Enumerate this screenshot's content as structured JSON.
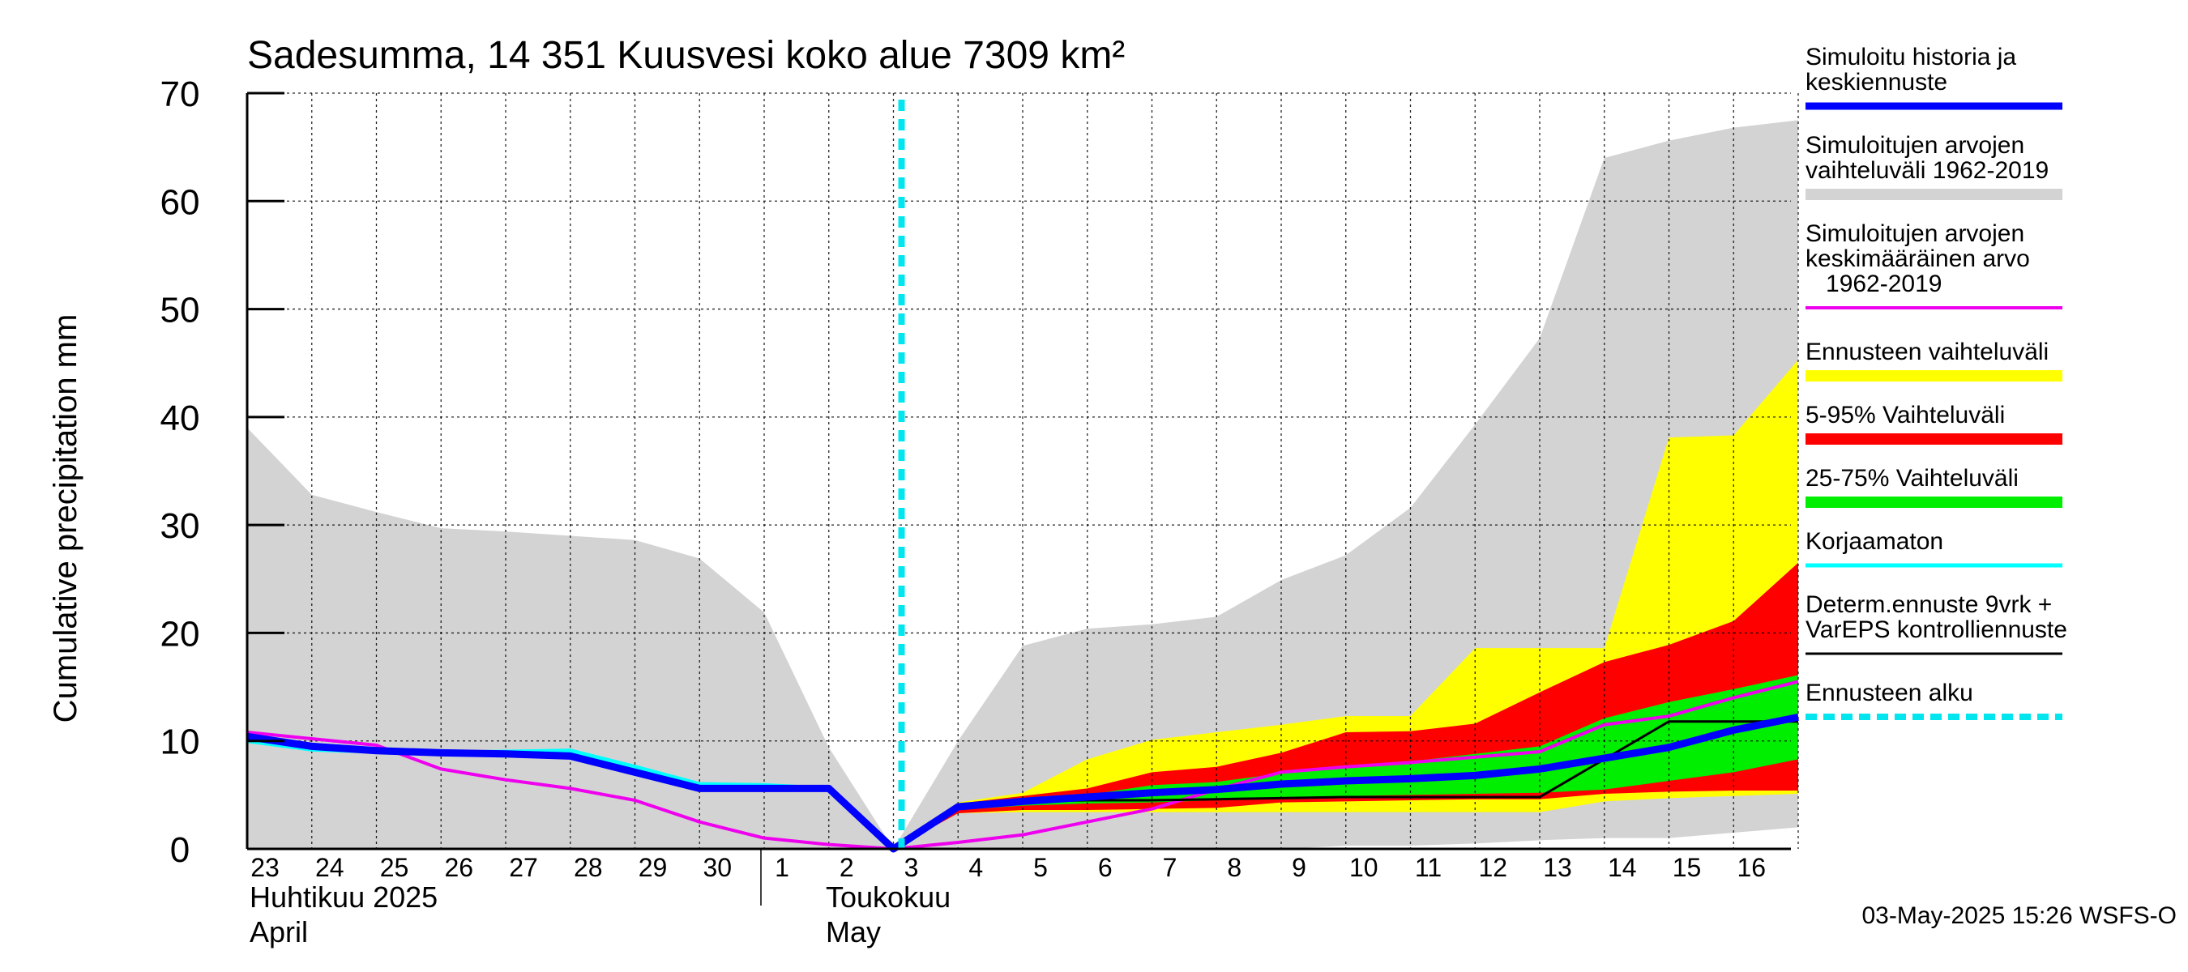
{
  "chart_data": {
    "type": "area",
    "title": "Sadesumma, 14 351 Kuusvesi koko alue 7309 km²",
    "ylabel": "Cumulative precipitation   mm",
    "ylim": [
      0,
      70
    ],
    "yticks": [
      0,
      10,
      20,
      30,
      40,
      50,
      60,
      70
    ],
    "grid": true,
    "x_day_labels": [
      "23",
      "24",
      "25",
      "26",
      "27",
      "28",
      "29",
      "30",
      "1",
      "2",
      "3",
      "4",
      "5",
      "6",
      "7",
      "8",
      "9",
      "10",
      "11",
      "12",
      "13",
      "14",
      "15",
      "16"
    ],
    "month_labels": [
      {
        "fi": "Huhtikuu  2025",
        "en": "April"
      },
      {
        "fi": "Toukokuu",
        "en": "May"
      }
    ],
    "forecast_start_day": 10,
    "series": {
      "range_1962_2019": {
        "x": [
          0,
          1,
          2,
          3,
          4,
          5,
          6,
          7,
          8,
          9,
          10,
          11,
          12,
          13,
          14,
          15,
          16,
          17,
          18,
          19,
          20,
          21,
          22,
          23,
          24
        ],
        "upper": [
          39,
          32.8,
          31.2,
          29.7,
          29.4,
          29.0,
          28.6,
          26.9,
          21.9,
          9.4,
          0,
          10,
          18.8,
          20.4,
          20.8,
          21.5,
          24.9,
          27.2,
          31.6,
          39.3,
          47.3,
          64,
          65.6,
          66.8,
          67.5
        ],
        "lower": [
          0,
          0,
          0,
          0,
          0,
          0,
          0,
          0,
          0,
          0,
          0,
          0,
          0,
          0,
          0,
          0,
          0,
          0.3,
          0.3,
          0.5,
          0.8,
          1,
          1,
          1.5,
          2
        ]
      },
      "forecast_range": {
        "x": [
          10,
          11,
          12,
          13,
          14,
          15,
          16,
          17,
          18,
          19,
          20,
          21,
          22,
          23,
          24
        ],
        "upper": [
          0,
          4.3,
          5.2,
          8.3,
          10.1,
          10.8,
          11.5,
          12.3,
          12.3,
          18.6,
          18.6,
          18.6,
          38.1,
          38.3,
          45.3
        ],
        "lower": [
          0,
          3.3,
          3.4,
          3.4,
          3.4,
          3.4,
          3.4,
          3.4,
          3.4,
          3.4,
          3.4,
          4.4,
          4.7,
          4.9,
          5.1
        ]
      },
      "p5_95": {
        "x": [
          10,
          11,
          12,
          13,
          14,
          15,
          16,
          17,
          18,
          19,
          20,
          21,
          22,
          23,
          24
        ],
        "upper": [
          0,
          4.2,
          4.9,
          5.6,
          7.1,
          7.6,
          8.9,
          10.8,
          10.9,
          11.6,
          14.5,
          17.3,
          18.9,
          21.1,
          26.5
        ],
        "lower": [
          0,
          3.3,
          3.6,
          3.6,
          3.7,
          3.8,
          4.3,
          4.4,
          4.5,
          4.6,
          4.6,
          5.1,
          5.3,
          5.4,
          5.4
        ]
      },
      "p25_75": {
        "x": [
          10,
          11,
          12,
          13,
          14,
          15,
          16,
          17,
          18,
          19,
          20,
          21,
          22,
          23,
          24
        ],
        "upper": [
          0,
          3.9,
          4.5,
          5.0,
          5.9,
          6.2,
          7.0,
          7.6,
          8.1,
          8.8,
          9.5,
          12.1,
          13.6,
          14.8,
          16.1
        ],
        "lower": [
          0,
          3.6,
          4.0,
          4.2,
          4.3,
          4.5,
          4.8,
          4.9,
          5.0,
          5.1,
          5.2,
          5.5,
          6.3,
          7.1,
          8.3
        ]
      },
      "mean_1962_2019": {
        "x": [
          0,
          1,
          2,
          3,
          4,
          5,
          6,
          7,
          8,
          9,
          10,
          11,
          12,
          13,
          14,
          15,
          16,
          17,
          18,
          19,
          20,
          21,
          22,
          23,
          24
        ],
        "y": [
          10.8,
          10.2,
          9.6,
          7.4,
          6.4,
          5.6,
          4.5,
          2.5,
          1.0,
          0.4,
          0,
          0.6,
          1.3,
          2.5,
          3.7,
          5.5,
          7.1,
          7.6,
          8.0,
          8.5,
          9.0,
          11.5,
          12.3,
          14.0,
          15.5
        ]
      },
      "simulated_history_median": {
        "x": [
          0,
          1,
          2,
          3,
          4,
          5,
          6,
          7,
          8,
          9,
          10,
          11,
          12,
          13,
          14,
          15,
          16,
          17,
          18,
          19,
          20,
          21,
          22,
          23,
          24
        ],
        "y": [
          10.4,
          9.5,
          9.1,
          8.9,
          8.8,
          8.6,
          7.1,
          5.6,
          5.6,
          5.6,
          0,
          3.9,
          4.4,
          4.8,
          5.2,
          5.5,
          6.0,
          6.3,
          6.5,
          6.8,
          7.4,
          8.4,
          9.4,
          11.0,
          12.2
        ]
      },
      "uncorrected": {
        "x": [
          0,
          1,
          2,
          3,
          4,
          5,
          6,
          7,
          8,
          9
        ],
        "y": [
          10.0,
          9.2,
          9.0,
          8.9,
          9.0,
          9.1,
          7.6,
          6.0,
          5.9,
          5.6
        ]
      },
      "deterministic_control": {
        "x": [
          10,
          11,
          12,
          13,
          14,
          15,
          16,
          17,
          18,
          19,
          20,
          21,
          22,
          23,
          24
        ],
        "y": [
          0,
          4.1,
          4.4,
          4.5,
          4.5,
          4.6,
          4.7,
          4.8,
          4.8,
          4.8,
          4.8,
          8.3,
          11.8,
          11.8,
          11.8
        ]
      }
    },
    "colors": {
      "range_1962_2019": "#d3d3d3",
      "forecast_range": "#ffff00",
      "p5_95": "#ff0000",
      "p25_75": "#00ee00",
      "mean_1962_2019": "#ee00ee",
      "simulated_history_median": "#0000ff",
      "uncorrected": "#00ffff",
      "deterministic_control": "#000000",
      "forecast_start": "#00e5ee"
    }
  },
  "legend": [
    {
      "key": "simulated_history_median",
      "lines": [
        "Simuloitu historia ja",
        "keskiennuste"
      ]
    },
    {
      "key": "range_1962_2019",
      "lines": [
        "Simuloitujen arvojen",
        "vaihteluväli 1962-2019"
      ]
    },
    {
      "key": "mean_1962_2019",
      "lines": [
        "Simuloitujen arvojen",
        "keskimääräinen arvo",
        "   1962-2019"
      ]
    },
    {
      "key": "forecast_range",
      "lines": [
        "Ennusteen vaihteluväli"
      ]
    },
    {
      "key": "p5_95",
      "lines": [
        "5-95% Vaihteluväli"
      ]
    },
    {
      "key": "p25_75",
      "lines": [
        "25-75% Vaihteluväli"
      ]
    },
    {
      "key": "uncorrected",
      "lines": [
        "Korjaamaton"
      ]
    },
    {
      "key": "deterministic_control",
      "lines": [
        "Determ.ennuste 9vrk +",
        "VarEPS kontrolliennuste"
      ]
    },
    {
      "key": "forecast_start",
      "lines": [
        "Ennusteen alku"
      ]
    }
  ],
  "footer": "03-May-2025 15:26 WSFS-O"
}
